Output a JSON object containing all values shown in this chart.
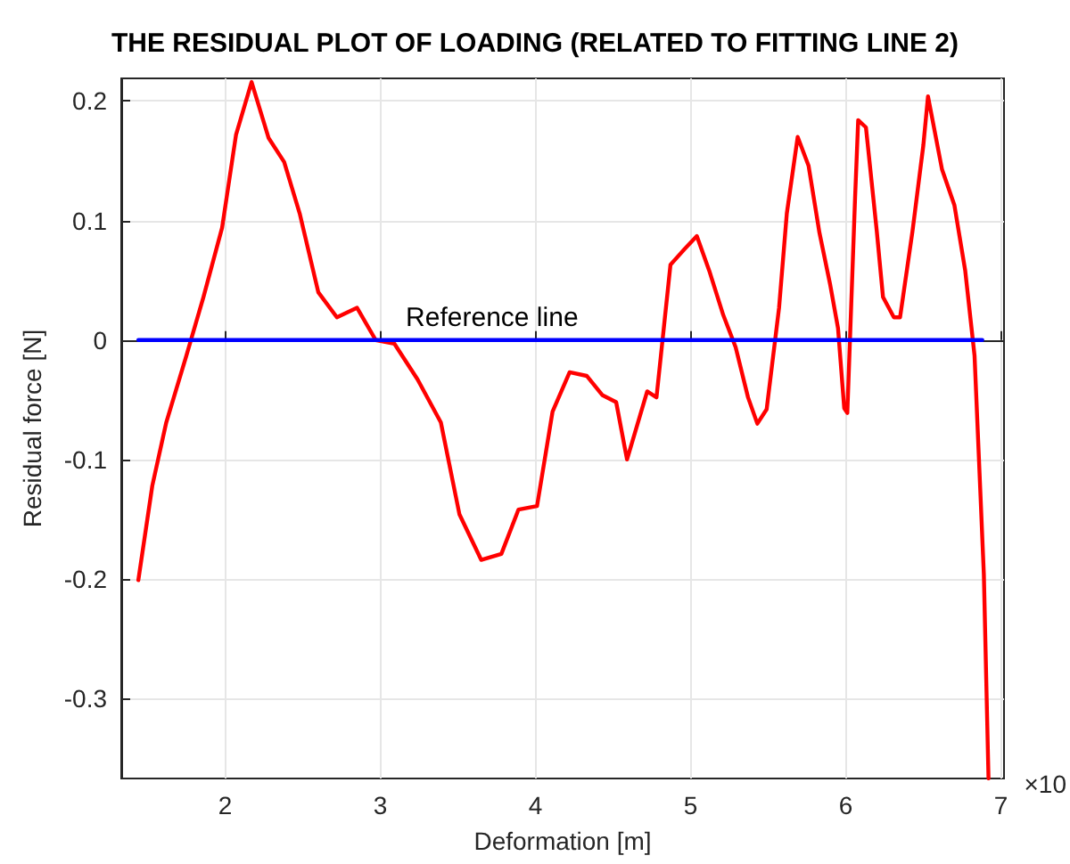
{
  "chart_data": {
    "type": "line",
    "title": "THE RESIDUAL PLOT OF LOADING (RELATED TO FITTING LINE 2)",
    "xlabel": "Deformation [m]",
    "ylabel": "Residual force [N]",
    "xlim": [
      1.33,
      7.02
    ],
    "xticks": [
      2,
      3,
      4,
      5,
      6,
      7
    ],
    "ylim": [
      -0.367,
      0.219
    ],
    "yticks": [
      -0.3,
      -0.2,
      -0.1,
      0,
      0.1,
      0.2
    ],
    "grid": true,
    "legend": false,
    "marker": "none",
    "line_style": "solid",
    "annotations": [
      "×10"
    ],
    "series": [
      {
        "color": "#ff0000",
        "x": [
          1.44,
          1.53,
          1.62,
          1.75,
          1.86,
          1.98,
          2.07,
          2.17,
          2.28,
          2.38,
          2.48,
          2.6,
          2.72,
          2.85,
          2.97,
          3.09,
          3.24,
          3.39,
          3.51,
          3.65,
          3.78,
          3.89,
          4.01,
          4.11,
          4.22,
          4.33,
          4.43,
          4.52,
          4.59,
          4.72,
          4.78,
          4.87,
          4.96,
          5.04,
          5.12,
          5.21,
          5.29,
          5.37,
          5.43,
          5.49,
          5.57,
          5.62,
          5.69,
          5.76,
          5.83,
          5.9,
          5.95,
          5.99,
          6.01,
          6.06,
          6.08,
          6.13,
          6.2,
          6.24,
          6.31,
          6.35,
          6.43,
          6.5,
          6.53,
          6.62,
          6.7,
          6.77,
          6.83,
          6.89,
          6.92
        ],
        "values": [
          -0.201,
          -0.122,
          -0.069,
          -0.013,
          0.036,
          0.094,
          0.172,
          0.216,
          0.169,
          0.149,
          0.106,
          0.04,
          0.019,
          0.027,
          0,
          -0.003,
          -0.033,
          -0.069,
          -0.146,
          -0.184,
          -0.179,
          -0.142,
          -0.139,
          -0.06,
          -0.027,
          -0.03,
          -0.046,
          -0.052,
          -0.1,
          -0.043,
          -0.048,
          0.063,
          0.076,
          0.087,
          0.058,
          0.021,
          -0.006,
          -0.048,
          -0.07,
          -0.058,
          0.027,
          0.106,
          0.17,
          0.146,
          0.09,
          0.046,
          0.01,
          -0.057,
          -0.061,
          0.119,
          0.184,
          0.178,
          0.091,
          0.036,
          0.019,
          0.019,
          0.091,
          0.163,
          0.204,
          0.143,
          0.113,
          0.058,
          -0.013,
          -0.196,
          -0.367
        ]
      },
      {
        "name": "Reference line",
        "color": "#0000ff",
        "x": [
          1.44,
          3.72,
          6.88
        ],
        "values": [
          0,
          0,
          0
        ]
      }
    ]
  }
}
